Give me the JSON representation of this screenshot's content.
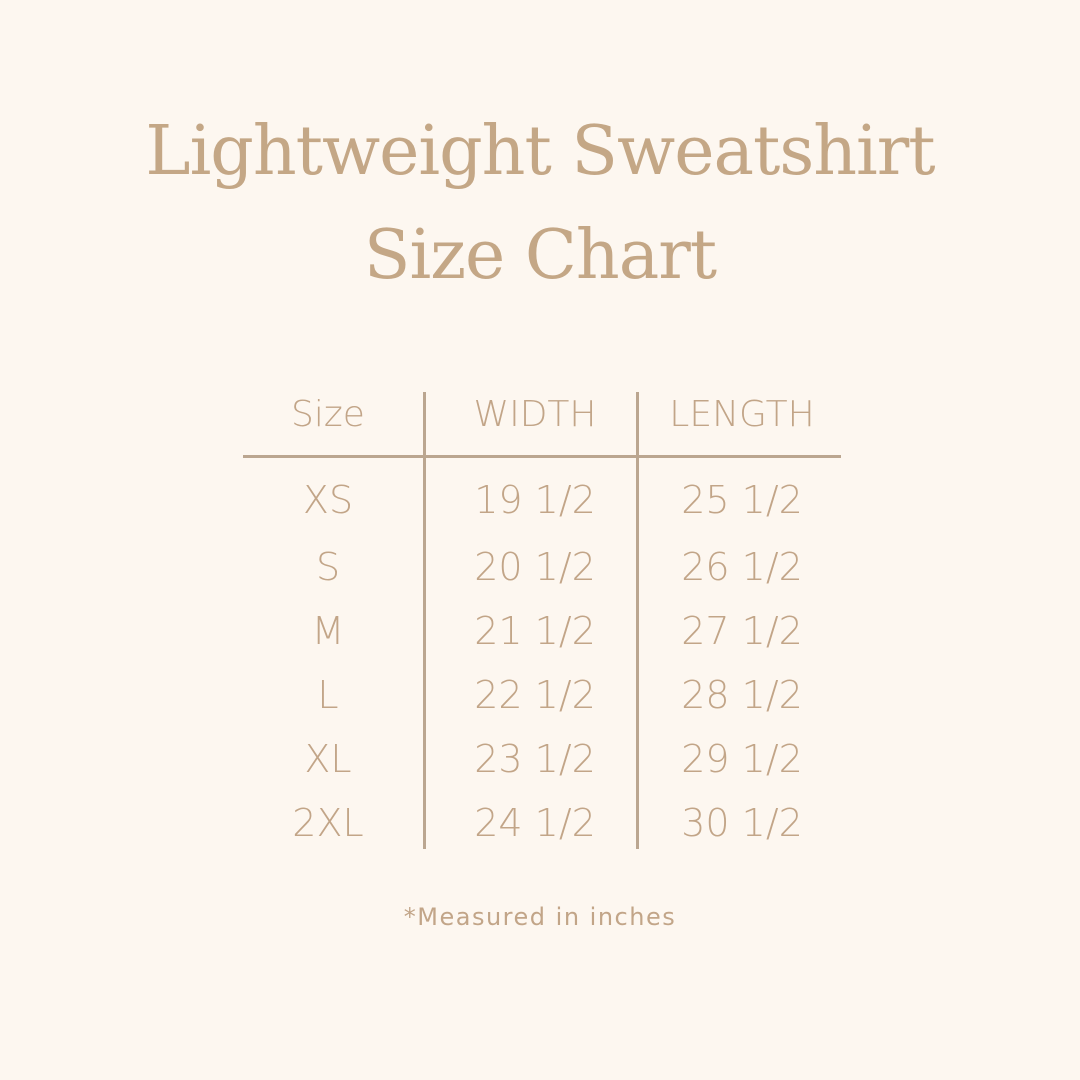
{
  "title_line1": "Lightweight Sweatshirt",
  "title_line2": "Size Chart",
  "table": {
    "headers": [
      "Size",
      "WIDTH",
      "LENGTH"
    ],
    "rows": [
      [
        "XS",
        "19 1/2",
        "25 1/2"
      ],
      [
        "S",
        "20 1/2",
        "26 1/2"
      ],
      [
        "M",
        "21 1/2",
        "27 1/2"
      ],
      [
        "L",
        "22 1/2",
        "28 1/2"
      ],
      [
        "XL",
        "23 1/2",
        "29 1/2"
      ],
      [
        "2XL",
        "24 1/2",
        "30 1/2"
      ]
    ]
  },
  "note": "*Measured in inches",
  "colors": {
    "background": "#fdf7f0",
    "text": "#c2a588",
    "rule": "#bba690"
  }
}
